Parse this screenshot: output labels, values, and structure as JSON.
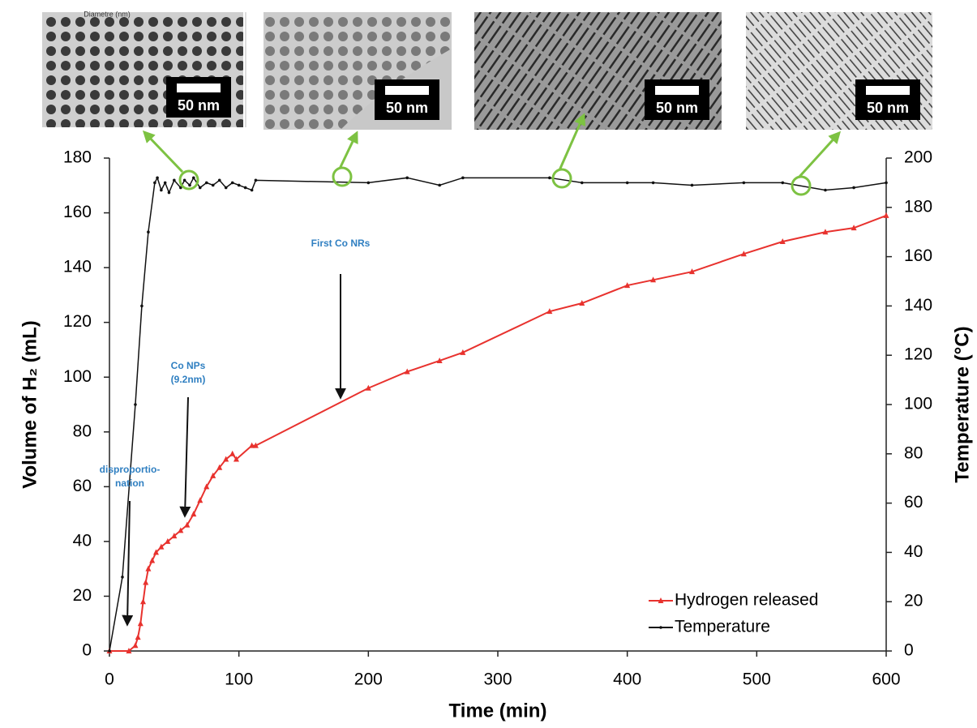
{
  "chart_data": {
    "type": "line",
    "x_label": "Time (min)",
    "y_label": "Volume of H₂ (mL)",
    "y2_label": "Temperature (°C)",
    "xlim": [
      0,
      600
    ],
    "xticks": [
      0,
      100,
      200,
      300,
      400,
      500,
      600
    ],
    "ylim": [
      0,
      180
    ],
    "yticks": [
      0,
      20,
      40,
      60,
      80,
      100,
      120,
      140,
      160,
      180
    ],
    "y2lim": [
      0,
      200
    ],
    "y2ticks": [
      0,
      20,
      40,
      60,
      80,
      100,
      120,
      140,
      160,
      180,
      200
    ],
    "legend": "lower right",
    "series": [
      {
        "name": "Hydrogen released",
        "color": "#e8322e",
        "marker": "triangle",
        "x": [
          0,
          15,
          20,
          22,
          24,
          26,
          28,
          30,
          33,
          36,
          40,
          45,
          50,
          55,
          60,
          65,
          70,
          75,
          80,
          85,
          90,
          95,
          98,
          110,
          113,
          200,
          230,
          255,
          273,
          340,
          365,
          400,
          420,
          450,
          490,
          520,
          553,
          575,
          600
        ],
        "values": [
          0,
          0,
          2,
          5,
          10,
          18,
          25,
          30,
          33,
          36,
          38,
          40,
          42,
          44,
          46,
          50,
          55,
          60,
          64,
          67,
          70,
          72,
          70,
          75,
          75,
          96,
          102,
          106,
          109,
          124,
          127,
          133.5,
          135.5,
          138.5,
          145,
          149.5,
          153,
          154.5,
          159
        ]
      },
      {
        "name": "Temperature",
        "color": "#111111",
        "marker": "dot",
        "axis": "y2",
        "x": [
          0,
          10,
          20,
          25,
          30,
          35,
          37,
          40,
          43,
          46,
          50,
          55,
          58,
          62,
          65,
          70,
          75,
          80,
          85,
          90,
          95,
          100,
          105,
          110,
          113,
          200,
          230,
          255,
          273,
          340,
          365,
          400,
          420,
          450,
          490,
          520,
          553,
          575,
          600
        ],
        "values": [
          0,
          30,
          100,
          140,
          170,
          190,
          192,
          187,
          190,
          186,
          191,
          188,
          191,
          189,
          192,
          188,
          190,
          189,
          191,
          188,
          190,
          189,
          188,
          187,
          191,
          190,
          192,
          189,
          192,
          192,
          190,
          190,
          190,
          189,
          190,
          190,
          187,
          188,
          190
        ]
      }
    ],
    "annotations": [
      {
        "lines": [
          "disproportio-",
          "nation"
        ]
      },
      {
        "lines": [
          "Co NPs",
          "(9.2nm)"
        ]
      },
      {
        "lines": [
          "First Co NRs"
        ]
      }
    ],
    "insets": [
      {
        "caption": "Diametre (nm)",
        "scale": "50 nm"
      },
      {
        "scale": "50 nm"
      },
      {
        "scale": "50 nm"
      },
      {
        "scale": "50 nm"
      }
    ]
  }
}
